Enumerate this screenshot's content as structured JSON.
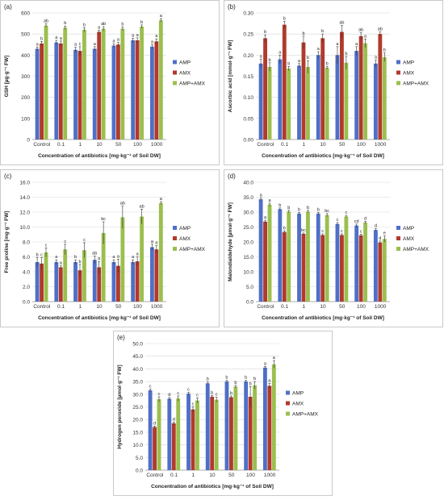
{
  "colors": {
    "AMP": "#4f6fc7",
    "AMX": "#b13a2c",
    "AMP+AMX": "#9bbf4f",
    "border": "#c9c9c9",
    "grid": "#d9d9d9",
    "axis_text": "#333333"
  },
  "chart_data": [
    {
      "id": "a",
      "type": "bar",
      "panel_label": "(a)",
      "ylabel": "GSH [µg·g⁻¹ FW]",
      "xlabel": "Concentration of antibiotics [mg·kg⁻¹ of Soil DW]",
      "categories": [
        "Control",
        "0.1",
        "1",
        "10",
        "50",
        "100",
        "1000"
      ],
      "ylim": [
        0,
        600
      ],
      "yticks": [
        0,
        100,
        200,
        300,
        400,
        500,
        600
      ],
      "tick_decimals": 0,
      "legend_position": "right",
      "grid": true,
      "series": [
        {
          "name": "AMP",
          "values": [
            430,
            460,
            425,
            430,
            445,
            470,
            440
          ],
          "errors": [
            8,
            10,
            12,
            10,
            8,
            10,
            10
          ],
          "letters": [
            "a",
            "a",
            "a",
            "a",
            "a",
            "a",
            "a"
          ]
        },
        {
          "name": "AMX",
          "values": [
            455,
            455,
            420,
            510,
            450,
            470,
            465
          ],
          "errors": [
            10,
            12,
            20,
            8,
            10,
            12,
            12
          ],
          "letters": [
            "b",
            "a",
            "c",
            "a",
            "a",
            "a",
            "a"
          ]
        },
        {
          "name": "AMP+AMX",
          "values": [
            540,
            530,
            520,
            525,
            525,
            535,
            565
          ],
          "errors": [
            8,
            8,
            10,
            10,
            8,
            8,
            8
          ],
          "letters": [
            "ab",
            "b",
            "b",
            "ab",
            "b",
            "b",
            "a"
          ]
        }
      ]
    },
    {
      "id": "b",
      "type": "bar",
      "panel_label": "(b)",
      "ylabel": "Ascorbic acid [mmol·g⁻¹ FW]",
      "xlabel": "Concentration of antibiotics [mg·kg⁻¹ of Soil DW]",
      "categories": [
        "Control",
        "0.1",
        "1",
        "10",
        "50",
        "100",
        "1000"
      ],
      "ylim": [
        0,
        0.3
      ],
      "yticks": [
        0,
        0.05,
        0.1,
        0.15,
        0.2,
        0.25,
        0.3
      ],
      "tick_decimals": 2,
      "legend_position": "right",
      "grid": true,
      "series": [
        {
          "name": "AMP",
          "values": [
            0.18,
            0.19,
            0.175,
            0.2,
            0.2,
            0.21,
            0.18
          ],
          "errors": [
            0.01,
            0.01,
            0.005,
            0.008,
            0.02,
            0.01,
            0.008
          ],
          "letters": [
            "a",
            "a",
            "a",
            "a",
            "a",
            "a",
            "a"
          ]
        },
        {
          "name": "AMX",
          "values": [
            0.24,
            0.272,
            0.23,
            0.24,
            0.255,
            0.245,
            0.25
          ],
          "errors": [
            0.008,
            0.008,
            0.015,
            0.01,
            0.015,
            0.008,
            0.005
          ],
          "letters": [
            "b",
            "b",
            "b",
            "b",
            "ab",
            "ab",
            "ab"
          ]
        },
        {
          "name": "AMP+AMX",
          "values": [
            0.172,
            0.168,
            0.172,
            0.17,
            0.182,
            0.228,
            0.195
          ],
          "errors": [
            0.01,
            0.005,
            0.015,
            0.003,
            0.015,
            0.01,
            0.01
          ],
          "letters": [
            "b",
            "b",
            "b",
            "b",
            "b",
            "a",
            "b"
          ]
        }
      ]
    },
    {
      "id": "c",
      "type": "bar",
      "panel_label": "(c)",
      "ylabel": "Free proline [mg·g⁻¹ FW]",
      "xlabel": "Concentration of antibiotics [mg·kg⁻¹ of Soil DW]",
      "categories": [
        "Control",
        "0.1",
        "1",
        "10",
        "50",
        "100",
        "1000"
      ],
      "ylim": [
        0,
        16
      ],
      "yticks": [
        0,
        2,
        4,
        6,
        8,
        10,
        12,
        14,
        16
      ],
      "tick_decimals": 1,
      "legend_position": "right",
      "grid": true,
      "series": [
        {
          "name": "AMP",
          "values": [
            5.3,
            5.3,
            5.3,
            5.6,
            5.3,
            5.3,
            7.3
          ],
          "errors": [
            0.6,
            0.3,
            0.3,
            0.5,
            0.3,
            0.3,
            0.4
          ],
          "letters": [
            "b",
            "a",
            "b",
            "ab",
            "a",
            "a",
            "a"
          ]
        },
        {
          "name": "AMX",
          "values": [
            5.1,
            4.6,
            4.2,
            4.6,
            4.8,
            5.4,
            7.0
          ],
          "errors": [
            0.8,
            0.2,
            0.8,
            0.8,
            0.9,
            0.6,
            0.5
          ],
          "letters": [
            "c",
            "a",
            "b",
            "a",
            "a",
            "a",
            "a"
          ]
        },
        {
          "name": "AMP+AMX",
          "values": [
            6.6,
            7.0,
            6.9,
            9.2,
            11.3,
            11.4,
            13.2
          ],
          "errors": [
            0.6,
            0.7,
            1.0,
            1.5,
            1.5,
            1.0,
            0.2
          ],
          "letters": [
            "c",
            "c",
            "c",
            "bc",
            "ab",
            "ab",
            "a"
          ]
        }
      ]
    },
    {
      "id": "d",
      "type": "bar",
      "panel_label": "(d)",
      "ylabel": "Malondialdehyde [µmol·g⁻¹ FW]",
      "xlabel": "Concentration of antibiotics [mg·kg⁻¹ of Soil DW]",
      "categories": [
        "Control",
        "0.1",
        "1",
        "10",
        "50",
        "100",
        "1000"
      ],
      "ylim": [
        0,
        40
      ],
      "yticks": [
        0,
        5,
        10,
        15,
        20,
        25,
        30,
        35,
        40
      ],
      "tick_decimals": 1,
      "legend_position": "right",
      "grid": true,
      "series": [
        {
          "name": "AMP",
          "values": [
            34.3,
            31.0,
            29.5,
            29.5,
            26.0,
            25.5,
            24.0
          ],
          "errors": [
            0.4,
            0.4,
            0.4,
            0.4,
            0.5,
            0.5,
            0.4
          ],
          "letters": [
            "a",
            "b",
            "b",
            "b",
            "c",
            "cd",
            "d"
          ]
        },
        {
          "name": "AMX",
          "values": [
            26.8,
            23.3,
            22.7,
            22.3,
            22.3,
            22.2,
            19.8
          ],
          "errors": [
            0.5,
            0.4,
            0.3,
            0.4,
            0.4,
            0.4,
            0.5
          ],
          "letters": [
            "a",
            "b",
            "bc",
            "c",
            "c",
            "c",
            "d"
          ]
        },
        {
          "name": "AMP+AMX",
          "values": [
            32.5,
            30.2,
            30.2,
            29.0,
            28.5,
            26.5,
            21.0
          ],
          "errors": [
            0.5,
            0.4,
            0.4,
            0.5,
            0.4,
            0.4,
            1.0
          ],
          "letters": [
            "a",
            "b",
            "b",
            "bc",
            "c",
            "d",
            "e"
          ]
        }
      ]
    },
    {
      "id": "e",
      "type": "bar",
      "panel_label": "(e)",
      "ylabel": "Hydrogen peroxide [µmol·g⁻¹ FW]",
      "xlabel": "Concentration of antibiotics [mg·kg⁻¹ of Soil DW]",
      "categories": [
        "Control",
        "0.1",
        "1",
        "10",
        "50",
        "100",
        "1000"
      ],
      "ylim": [
        0,
        50
      ],
      "yticks": [
        0,
        5,
        10,
        15,
        20,
        25,
        30,
        35,
        40,
        45,
        50
      ],
      "tick_decimals": 1,
      "legend_position": "right",
      "grid": true,
      "series": [
        {
          "name": "AMP",
          "values": [
            31.5,
            28.2,
            30.2,
            34.3,
            35.0,
            35.0,
            40.5
          ],
          "errors": [
            0.5,
            0.5,
            0.5,
            0.5,
            0.5,
            0.5,
            0.5
          ],
          "letters": [
            "c",
            "d",
            "c",
            "b",
            "b",
            "b",
            "a"
          ]
        },
        {
          "name": "AMX",
          "values": [
            17.0,
            18.5,
            24.0,
            29.0,
            28.8,
            29.0,
            33.3
          ],
          "errors": [
            0.4,
            0.5,
            1.0,
            0.5,
            0.5,
            4.0,
            1.0
          ],
          "letters": [
            "d",
            "d",
            "c",
            "b",
            "b",
            "b",
            "a"
          ]
        },
        {
          "name": "AMP+AMX",
          "values": [
            28.0,
            28.3,
            27.5,
            27.8,
            33.0,
            33.5,
            41.8
          ],
          "errors": [
            1.0,
            1.0,
            1.0,
            1.0,
            0.5,
            1.5,
            1.5
          ],
          "letters": [
            "c",
            "c",
            "c",
            "c",
            "b",
            "b",
            "a"
          ]
        }
      ]
    }
  ]
}
